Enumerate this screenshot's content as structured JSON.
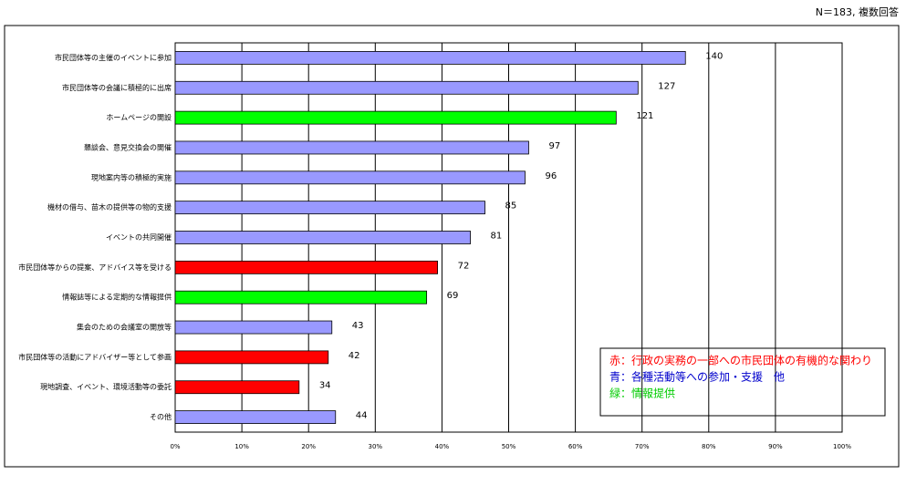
{
  "chart_data": {
    "type": "hbar",
    "note": "N＝183, 複数回答",
    "categories": [
      "市民団体等の主催のイベントに参加",
      "市民団体等の会議に積極的に出席",
      "ホームページの開設",
      "懇談会、意見交換会の開催",
      "現地案内等の積極的実施",
      "機材の借与、苗木の提供等の物的支援",
      "イベントの共同開催",
      "市民団体等からの提案、アドバイス等を受ける",
      "情報誌等による定期的な情報提供",
      "集会のための会議室の開放等",
      "市民団体等の活動にアドバイザー等として参画",
      "現地調査、イベント、環境活動等の委託",
      "その他"
    ],
    "values": [
      140,
      127,
      121,
      97,
      96,
      85,
      81,
      72,
      69,
      43,
      42,
      34,
      44
    ],
    "colors": [
      "#9999ff",
      "#9999ff",
      "#00ff00",
      "#9999ff",
      "#9999ff",
      "#9999ff",
      "#9999ff",
      "#ff0000",
      "#00ff00",
      "#9999ff",
      "#ff0000",
      "#ff0000",
      "#9999ff"
    ],
    "xlim": [
      0,
      183
    ],
    "xticks": [
      {
        "value": 0,
        "label": "0%"
      },
      {
        "value": 18.3,
        "label": "10%"
      },
      {
        "value": 36.6,
        "label": "20%"
      },
      {
        "value": 54.9,
        "label": "30%"
      },
      {
        "value": 73.2,
        "label": "40%"
      },
      {
        "value": 91.5,
        "label": "50%"
      },
      {
        "value": 109.8,
        "label": "60%"
      },
      {
        "value": 128.1,
        "label": "70%"
      },
      {
        "value": 146.4,
        "label": "80%"
      },
      {
        "value": 164.7,
        "label": "90%"
      },
      {
        "value": 183,
        "label": "100%"
      }
    ],
    "grid": true,
    "legend": [
      {
        "label": "赤：行政の実務の一部への市民団体の有機的な関わり",
        "color": "#ff0000"
      },
      {
        "label": "青：各種活動等への参加・支援　他",
        "color": "#0000cc"
      },
      {
        "label": "緑：情報提供",
        "color": "#00cc00"
      }
    ]
  }
}
